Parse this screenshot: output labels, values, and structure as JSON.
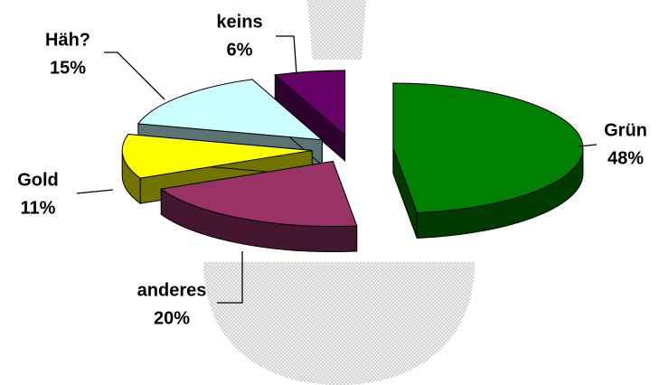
{
  "chart_data": {
    "type": "pie",
    "three_d": true,
    "categories": [
      "Grün",
      "anderes",
      "Gold",
      "Häh?",
      "keins"
    ],
    "values": [
      48,
      20,
      11,
      15,
      6
    ],
    "value_labels": [
      "48%",
      "20%",
      "11%",
      "15%",
      "6%"
    ],
    "colors": [
      "#008000",
      "#993366",
      "#ffff00",
      "#ccffff",
      "#660066"
    ]
  }
}
